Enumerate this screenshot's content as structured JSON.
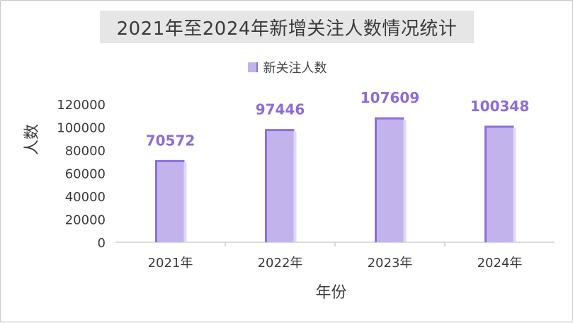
{
  "chart_data": {
    "type": "bar",
    "title": "2021年至2024年新增关注人数情况统计",
    "xlabel": "年份",
    "ylabel": "人数",
    "categories": [
      "2021年",
      "2022年",
      "2023年",
      "2024年"
    ],
    "series": [
      {
        "name": "新关注人数",
        "values": [
          70572,
          97446,
          107609,
          100348
        ]
      }
    ],
    "data_labels": [
      "70572",
      "97446",
      "107609",
      "100348"
    ],
    "ylim": [
      0,
      120000
    ],
    "yticks": [
      "0",
      "20000",
      "40000",
      "60000",
      "80000",
      "100000",
      "120000"
    ],
    "grid": false,
    "legend_position": "top",
    "colors": {
      "bar_fill": "#c2b3ec",
      "bar_edge": "#8e6fdd",
      "data_label": "#8d6bd9"
    }
  }
}
